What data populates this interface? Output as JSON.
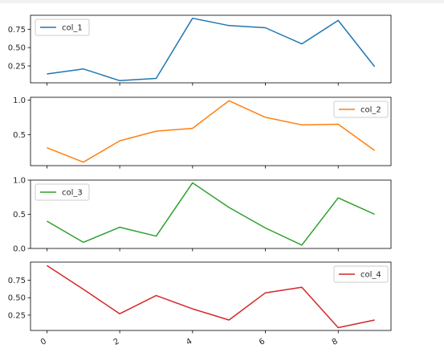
{
  "chart_data": [
    {
      "type": "line",
      "x": [
        0,
        1,
        2,
        3,
        4,
        5,
        6,
        7,
        8,
        9
      ],
      "series": [
        {
          "name": "col_1",
          "values": [
            0.14,
            0.21,
            0.05,
            0.08,
            0.9,
            0.8,
            0.77,
            0.55,
            0.87,
            0.24
          ]
        }
      ],
      "color": "#1f77b4",
      "ylim": [
        0.02,
        0.94
      ],
      "yticks": [
        0.25,
        0.5,
        0.75
      ],
      "ytick_labels": [
        "0.25",
        "0.50",
        "0.75"
      ],
      "legend": "upper-left",
      "show_xticklabels": false
    },
    {
      "type": "line",
      "x": [
        0,
        1,
        2,
        3,
        4,
        5,
        6,
        7,
        8,
        9
      ],
      "series": [
        {
          "name": "col_2",
          "values": [
            0.31,
            0.1,
            0.41,
            0.55,
            0.59,
            0.99,
            0.75,
            0.64,
            0.65,
            0.27
          ]
        }
      ],
      "color": "#ff7f0e",
      "ylim": [
        0.05,
        1.04
      ],
      "yticks": [
        0.5,
        1.0
      ],
      "ytick_labels": [
        "0.5",
        "1.0"
      ],
      "legend": "upper-right",
      "show_xticklabels": false
    },
    {
      "type": "line",
      "x": [
        0,
        1,
        2,
        3,
        4,
        5,
        6,
        7,
        8,
        9
      ],
      "series": [
        {
          "name": "col_3",
          "values": [
            0.4,
            0.09,
            0.31,
            0.18,
            0.96,
            0.6,
            0.3,
            0.05,
            0.74,
            0.5
          ]
        }
      ],
      "color": "#2ca02c",
      "ylim": [
        0.0,
        1.0
      ],
      "yticks": [
        0.0,
        0.5,
        1.0
      ],
      "ytick_labels": [
        "0.0",
        "0.5",
        "1.0"
      ],
      "legend": "upper-left",
      "show_xticklabels": false
    },
    {
      "type": "line",
      "x": [
        0,
        1,
        2,
        3,
        4,
        5,
        6,
        7,
        8,
        9
      ],
      "series": [
        {
          "name": "col_4",
          "values": [
            0.96,
            0.62,
            0.27,
            0.53,
            0.34,
            0.18,
            0.57,
            0.65,
            0.07,
            0.18
          ]
        }
      ],
      "color": "#d62728",
      "ylim": [
        0.03,
        1.01
      ],
      "yticks": [
        0.25,
        0.5,
        0.75
      ],
      "ytick_labels": [
        "0.25",
        "0.50",
        "0.75"
      ],
      "legend": "upper-right",
      "show_xticklabels": true,
      "xticks": [
        0,
        2,
        4,
        6,
        8
      ],
      "xtick_labels": [
        "0",
        "2",
        "4",
        "6",
        "8"
      ]
    }
  ]
}
